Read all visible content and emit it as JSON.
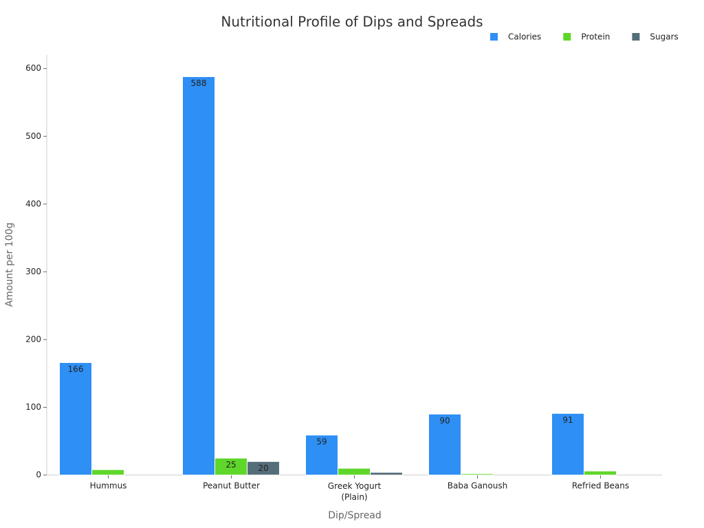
{
  "chart_data": {
    "type": "bar",
    "title": "Nutritional Profile of Dips and Spreads",
    "x_label": "Dip/Spread",
    "y_label": "Amount per 100g",
    "categories": [
      "Hummus",
      "Peanut Butter",
      "Greek Yogurt (Plain)",
      "Baba Ganoush",
      "Refried Beans"
    ],
    "series": [
      {
        "name": "Calories",
        "color": "#2e8ff5",
        "values": [
          166,
          588,
          59,
          90,
          91
        ]
      },
      {
        "name": "Protein",
        "color": "#5ed62a",
        "values": [
          8,
          25,
          10,
          2,
          6
        ]
      },
      {
        "name": "Sugars",
        "color": "#546e7a",
        "values": [
          0,
          20,
          4,
          0,
          0
        ]
      }
    ],
    "ylim": [
      0,
      620
    ],
    "yticks": [
      0,
      100,
      200,
      300,
      400,
      500,
      600
    ],
    "grid": false,
    "legend": "top-right"
  }
}
